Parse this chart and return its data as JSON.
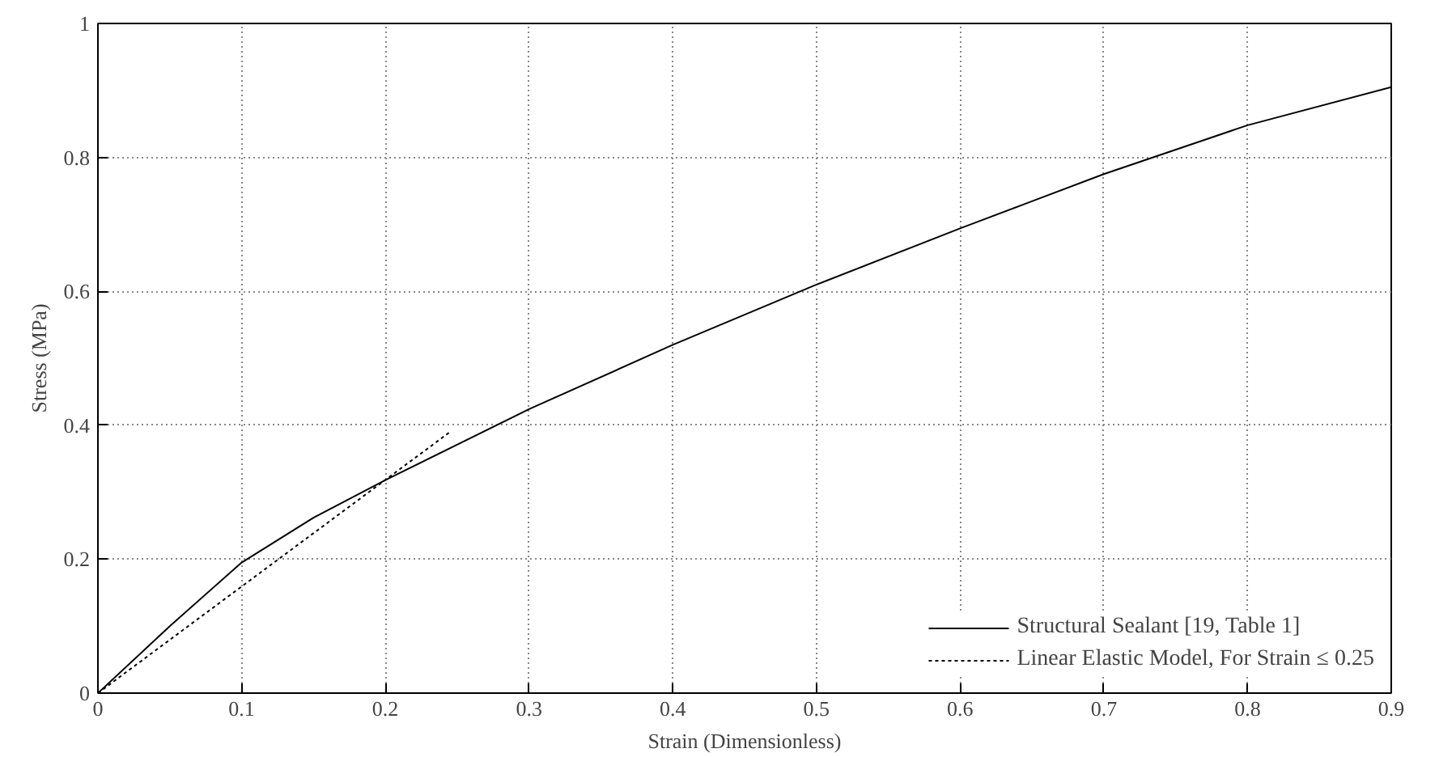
{
  "chart_data": {
    "type": "line",
    "xlabel": "Strain (Dimensionless)",
    "ylabel": "Stress (MPa)",
    "xlim": [
      0,
      0.9
    ],
    "ylim": [
      0,
      1
    ],
    "xticks": [
      0,
      0.1,
      0.2,
      0.3,
      0.4,
      0.5,
      0.6,
      0.7,
      0.8,
      0.9
    ],
    "yticks": [
      0,
      0.2,
      0.4,
      0.6,
      0.8,
      1
    ],
    "grid": true,
    "legend": "bottom right",
    "series": [
      {
        "name": "Structural Sealant [19, Table 1]",
        "color": "#000000",
        "line_style": "solid",
        "x": [
          0,
          0.05,
          0.1,
          0.15,
          0.2,
          0.3,
          0.4,
          0.5,
          0.6,
          0.7,
          0.8,
          0.9
        ],
        "values": [
          0,
          0.1,
          0.195,
          0.262,
          0.318,
          0.424,
          0.52,
          0.61,
          0.694,
          0.775,
          0.848,
          0.905
        ]
      },
      {
        "name": "Linear Elastic Model, For Strain ≤ 0.25",
        "color": "#000000",
        "line_style": "dotted",
        "x": [
          0,
          0.245
        ],
        "values": [
          0,
          0.39
        ]
      }
    ]
  }
}
